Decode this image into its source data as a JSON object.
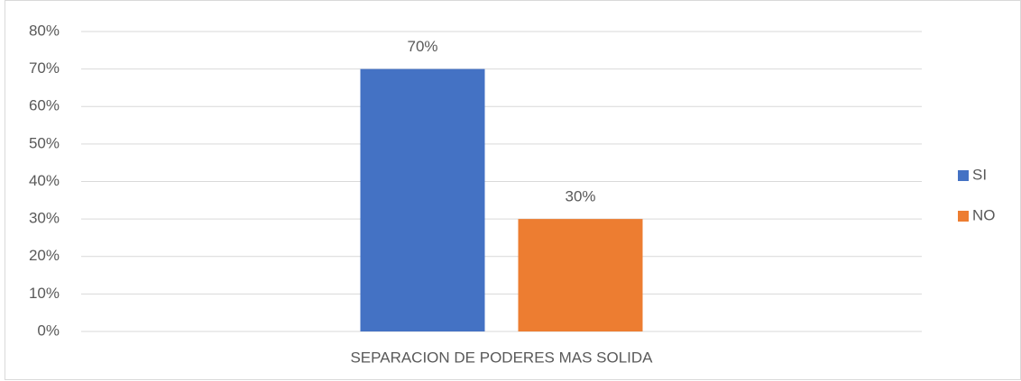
{
  "chart_data": {
    "type": "bar",
    "categories": [
      "SEPARACION DE PODERES MAS SOLIDA"
    ],
    "series": [
      {
        "name": "SI",
        "color": "#4472c4",
        "values": [
          70
        ],
        "value_labels": [
          "70%"
        ]
      },
      {
        "name": "NO",
        "color": "#ed7d31",
        "values": [
          30
        ],
        "value_labels": [
          "30%"
        ]
      }
    ],
    "ylim": [
      0,
      80
    ],
    "yticks": [
      {
        "value": 0,
        "label": "0%"
      },
      {
        "value": 10,
        "label": "10%"
      },
      {
        "value": 20,
        "label": "20%"
      },
      {
        "value": 30,
        "label": "30%"
      },
      {
        "value": 40,
        "label": "40%"
      },
      {
        "value": 50,
        "label": "50%"
      },
      {
        "value": 60,
        "label": "60%"
      },
      {
        "value": 70,
        "label": "70%"
      },
      {
        "value": 80,
        "label": "80%"
      }
    ],
    "grid": true,
    "legend": "right"
  }
}
